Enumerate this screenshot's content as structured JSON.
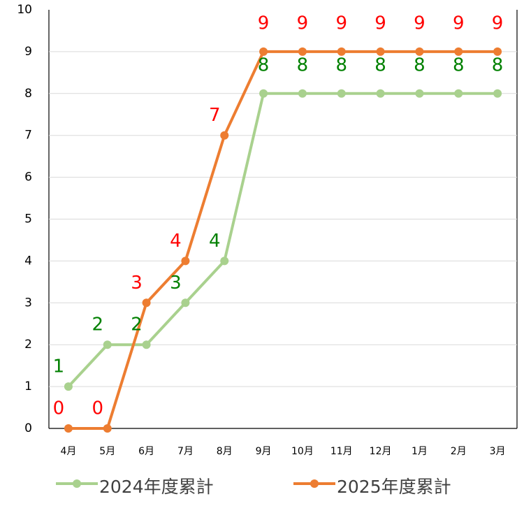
{
  "chart_data": {
    "type": "line",
    "categories": [
      "4月",
      "5月",
      "6月",
      "7月",
      "8月",
      "9月",
      "10月",
      "11月",
      "12月",
      "1月",
      "2月",
      "3月"
    ],
    "series": [
      {
        "name": "2024年度累計",
        "color": "#a9d18e",
        "label_color": "#008000",
        "values": [
          1,
          2,
          2,
          3,
          4,
          8,
          8,
          8,
          8,
          8,
          8,
          8
        ]
      },
      {
        "name": "2025年度累計",
        "color": "#ed7d31",
        "label_color": "#ff0000",
        "values": [
          0,
          0,
          3,
          4,
          7,
          9,
          9,
          9,
          9,
          9,
          9,
          9
        ]
      }
    ],
    "ylim": [
      0,
      10
    ],
    "yticks": [
      0,
      1,
      2,
      3,
      4,
      5,
      6,
      7,
      8,
      9,
      10
    ],
    "grid": true,
    "data_labels": true,
    "legend": "bottom"
  }
}
